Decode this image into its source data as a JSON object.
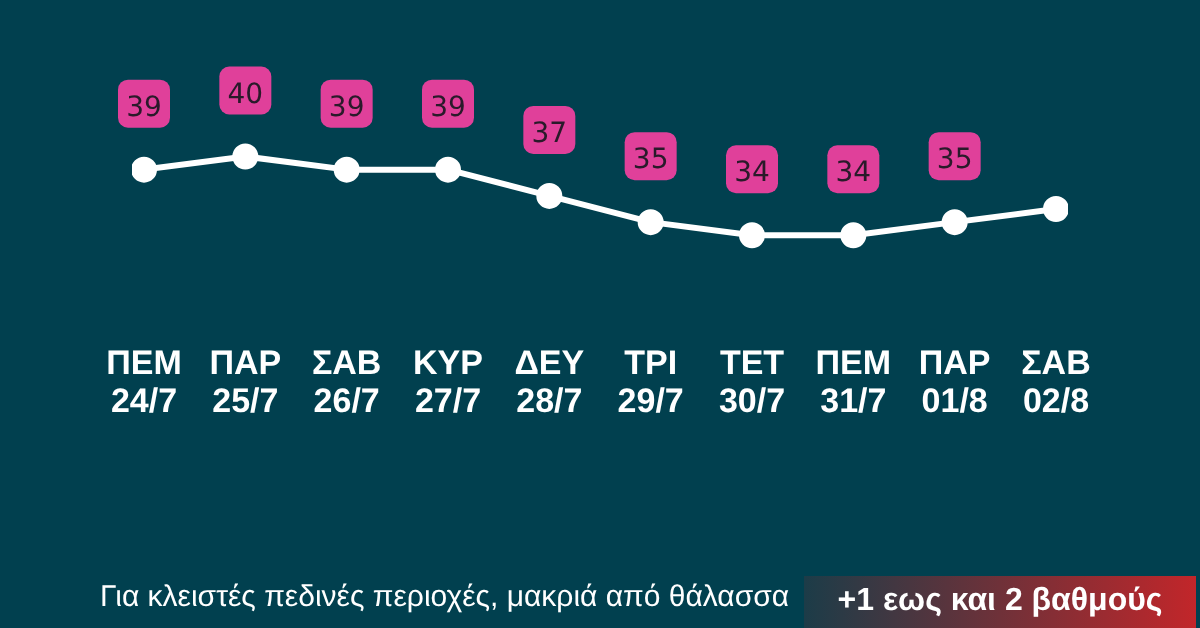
{
  "chart_data": {
    "type": "line",
    "categories": [
      "ΠΕΜ 24/7",
      "ΠΑΡ 25/7",
      "ΣΑΒ 26/7",
      "ΚΥΡ 27/7",
      "ΔΕΥ 28/7",
      "ΤΡΙ 29/7",
      "ΤΕΤ 30/7",
      "ΠΕΜ 31/7",
      "ΠΑΡ 01/8",
      "ΣΑΒ 02/8"
    ],
    "series": [
      {
        "color": "#ffffff",
        "values": [
          39,
          40,
          39,
          39,
          37,
          35,
          34,
          34,
          35,
          36
        ],
        "value_labels": [
          "39",
          "40",
          "39",
          "39",
          "37",
          "35",
          "34",
          "34",
          "35",
          null
        ]
      }
    ],
    "tick_labels": "x",
    "grid": false,
    "legend": false,
    "marker": "circle",
    "line_style": "solid",
    "annotations": [
      "Για κλειστές πεδινές περιοχές, μακριά από θάλασσα",
      "+1 εως και 2 βαθμούς"
    ]
  }
}
